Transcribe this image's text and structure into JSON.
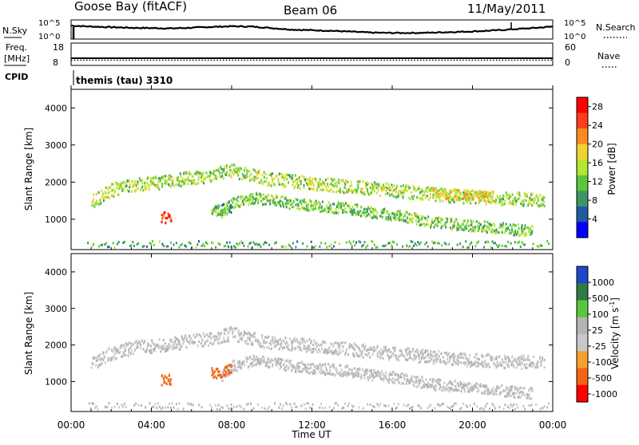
{
  "header": {
    "station": "Goose Bay (fitACF)",
    "beam": "Beam 06",
    "date": "11/May/2011"
  },
  "noise_panel": {
    "left_label": "N.Sky",
    "right_label": "N.Search",
    "left_ticks": [
      "10^5",
      "10^0"
    ],
    "right_ticks": [
      "10^5",
      "10^0"
    ]
  },
  "freq_panel": {
    "left_label_1": "Freq.",
    "left_label_2": "[MHz]",
    "right_label": "Nave",
    "left_ticks": [
      "18",
      "8"
    ],
    "right_ticks": [
      "60",
      "0"
    ]
  },
  "cpid": {
    "label": "CPID",
    "text": "themis (tau) 3310"
  },
  "power_panel": {
    "ylabel": "Slant Range [km]",
    "yticks": [
      "1000",
      "2000",
      "3000",
      "4000"
    ],
    "colorbar_label": "Power [dB]",
    "colorbar_ticks": [
      "4",
      "8",
      "12",
      "16",
      "20",
      "24",
      "28"
    ]
  },
  "velocity_panel": {
    "ylabel": "Slant Range [km]",
    "yticks": [
      "1000",
      "2000",
      "3000",
      "4000"
    ],
    "colorbar_label": "Velocity [m s",
    "colorbar_label_sup": "-1",
    "colorbar_label_end": "]",
    "colorbar_ticks": [
      "1000",
      "500",
      "100",
      "25",
      "-25",
      "-100",
      "-500",
      "-1000"
    ]
  },
  "xaxis": {
    "label": "Time UT",
    "ticks": [
      "00:00",
      "04:00",
      "08:00",
      "12:00",
      "16:00",
      "20:00",
      "00:00"
    ]
  },
  "colors": {
    "power_scale": [
      "#0000ff",
      "#1e5aa0",
      "#3c9664",
      "#5ac83c",
      "#b4e632",
      "#f0d232",
      "#fa8c1e",
      "#ff3c1e",
      "#ff0000"
    ],
    "velocity_scale": [
      "#1e46c8",
      "#2f7a46",
      "#58c83a",
      "#b4b4b4",
      "#c8c8c8",
      "#f5a030",
      "#f56414",
      "#ff0000"
    ]
  },
  "chart_data": [
    {
      "type": "line",
      "title": "Goose Bay (fitACF) Beam 06",
      "xlabel": "",
      "ylabel": "N.Sky",
      "xlim": [
        0,
        24
      ],
      "ylim": [
        0,
        5
      ],
      "x": [
        0,
        1,
        2,
        3,
        4,
        5,
        6,
        7,
        8,
        9,
        10,
        11,
        12,
        13,
        14,
        15,
        16,
        17,
        18,
        19,
        20,
        21,
        22,
        23,
        24
      ],
      "series": [
        {
          "name": "",
          "values": [
            3.9,
            3.6,
            3.4,
            3.2,
            3.1,
            3.0,
            3.2,
            3.5,
            3.7,
            3.6,
            3.1,
            2.6,
            2.4,
            2.2,
            1.9,
            1.6,
            1.5,
            1.5,
            1.6,
            1.8,
            2.0,
            2.3,
            2.7,
            3.1,
            3.6
          ]
        }
      ]
    },
    {
      "type": "line",
      "title": "",
      "xlabel": "",
      "ylabel": "Freq. [MHz]",
      "xlim": [
        0,
        24
      ],
      "ylim": [
        8,
        18
      ],
      "series": [
        {
          "name": "",
          "values": [
            10.4,
            10.4
          ]
        }
      ],
      "x": [
        0,
        24
      ]
    },
    {
      "type": "heatmap",
      "title": "",
      "xlabel": "Time UT",
      "ylabel": "Slant Range [km]",
      "xlim": [
        0,
        24
      ],
      "ylim": [
        180,
        4500
      ],
      "colorbar": "Power [dB]",
      "colorbar_range": [
        0,
        30
      ],
      "bands": [
        {
          "times": [
            1,
            2,
            3,
            4,
            5,
            6,
            7,
            8,
            9,
            10,
            11,
            12,
            13,
            14,
            15,
            16,
            17,
            18,
            19,
            20,
            21,
            22,
            23.6
          ],
          "ranges": [
            1500,
            1800,
            1950,
            2000,
            2050,
            2150,
            2200,
            2350,
            2200,
            2100,
            2050,
            2000,
            1950,
            1900,
            1850,
            1800,
            1750,
            1700,
            1650,
            1620,
            1600,
            1570,
            1550
          ],
          "width": 180,
          "level": 14
        },
        {
          "times": [
            7.5,
            8,
            9,
            10,
            11,
            12,
            13,
            14,
            15,
            16,
            17,
            18,
            19,
            20,
            21,
            22,
            23
          ],
          "ranges": [
            1200,
            1450,
            1600,
            1550,
            1450,
            1400,
            1350,
            1300,
            1200,
            1150,
            1050,
            950,
            900,
            850,
            800,
            750,
            700
          ],
          "width": 150,
          "level": 12
        },
        {
          "times": [
            4.5,
            4.8,
            5.0
          ],
          "ranges": [
            1050,
            1080,
            1100
          ],
          "width": 150,
          "level": 26
        },
        {
          "times": [
            7.0,
            7.5,
            8.0
          ],
          "ranges": [
            1250,
            1300,
            1350
          ],
          "width": 150,
          "level": 10
        },
        {
          "times": [
            18,
            19,
            20,
            21
          ],
          "ranges": [
            1750,
            1700,
            1650,
            1600
          ],
          "width": 150,
          "level": 18
        }
      ]
    },
    {
      "type": "heatmap",
      "title": "",
      "xlabel": "Time UT",
      "ylabel": "Slant Range [km]",
      "xlim": [
        0,
        24
      ],
      "ylim": [
        180,
        4500
      ],
      "colorbar": "Velocity [m s-1]",
      "colorbar_range": [
        -1000,
        1000
      ],
      "bands": [
        {
          "times": [
            1,
            2,
            3,
            4,
            5,
            6,
            7,
            8,
            9,
            10,
            11,
            12,
            13,
            14,
            15,
            16,
            17,
            18,
            19,
            20,
            21,
            22,
            23.6
          ],
          "ranges": [
            1500,
            1800,
            1950,
            2000,
            2050,
            2150,
            2200,
            2350,
            2200,
            2100,
            2050,
            2000,
            1950,
            1900,
            1850,
            1800,
            1750,
            1700,
            1650,
            1620,
            1600,
            1570,
            1550
          ],
          "width": 180,
          "level": 0
        },
        {
          "times": [
            7.5,
            8,
            9,
            10,
            11,
            12,
            13,
            14,
            15,
            16,
            17,
            18,
            19,
            20,
            21,
            22,
            23
          ],
          "ranges": [
            1200,
            1450,
            1600,
            1550,
            1450,
            1400,
            1350,
            1300,
            1200,
            1150,
            1050,
            950,
            900,
            850,
            800,
            750,
            700
          ],
          "width": 150,
          "level": 0
        },
        {
          "times": [
            4.5,
            4.8,
            5.0
          ],
          "ranges": [
            1050,
            1080,
            1100
          ],
          "width": 150,
          "level": -300
        },
        {
          "times": [
            7.0,
            7.5,
            8.0
          ],
          "ranges": [
            1250,
            1300,
            1350
          ],
          "width": 150,
          "level": -350
        }
      ]
    }
  ]
}
